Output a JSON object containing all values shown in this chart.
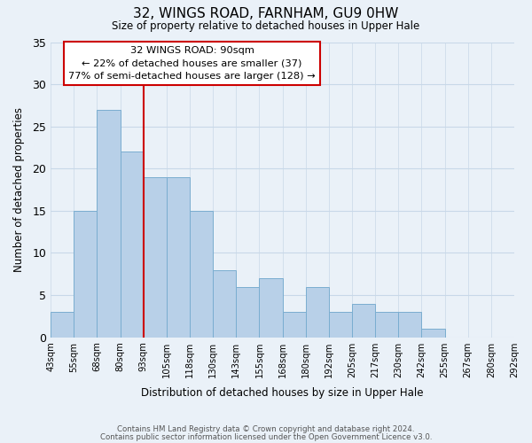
{
  "title": "32, WINGS ROAD, FARNHAM, GU9 0HW",
  "subtitle": "Size of property relative to detached houses in Upper Hale",
  "xlabel": "Distribution of detached houses by size in Upper Hale",
  "ylabel": "Number of detached properties",
  "bin_labels": [
    "43sqm",
    "55sqm",
    "68sqm",
    "80sqm",
    "93sqm",
    "105sqm",
    "118sqm",
    "130sqm",
    "143sqm",
    "155sqm",
    "168sqm",
    "180sqm",
    "192sqm",
    "205sqm",
    "217sqm",
    "230sqm",
    "242sqm",
    "255sqm",
    "267sqm",
    "280sqm",
    "292sqm"
  ],
  "bar_values": [
    3,
    15,
    27,
    22,
    19,
    19,
    15,
    8,
    6,
    7,
    3,
    6,
    3,
    4,
    3,
    3,
    1,
    0,
    0,
    0
  ],
  "bar_color": "#b8d0e8",
  "bar_edge_color": "#7aadd0",
  "grid_color": "#c8d8e8",
  "background_color": "#eaf1f8",
  "vline_x": 4,
  "vline_color": "#cc0000",
  "ylim": [
    0,
    35
  ],
  "yticks": [
    0,
    5,
    10,
    15,
    20,
    25,
    30,
    35
  ],
  "annotation_text": "32 WINGS ROAD: 90sqm\n← 22% of detached houses are smaller (37)\n77% of semi-detached houses are larger (128) →",
  "annotation_box_color": "#ffffff",
  "annotation_box_edge": "#cc0000",
  "footer1": "Contains HM Land Registry data © Crown copyright and database right 2024.",
  "footer2": "Contains public sector information licensed under the Open Government Licence v3.0."
}
